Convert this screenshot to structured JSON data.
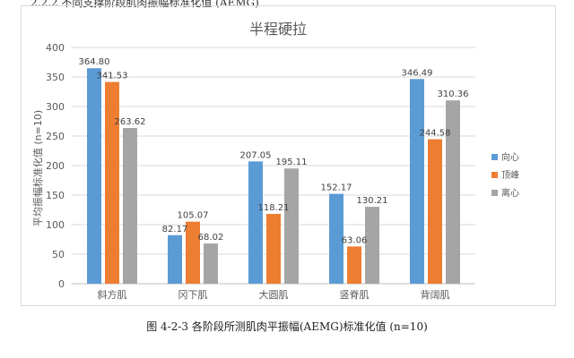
{
  "header_partial": "2.2.2 不同支撑阶段肌肉振幅标准化值 (AEMG)",
  "caption": "图 4-2-3 各阶段所测肌肉平振幅(AEMG)标准化值 (n=10)",
  "chart_data": {
    "type": "bar",
    "title": "半程硬拉",
    "xlabel": "",
    "ylabel": "平均振幅标准化值 (n=10)",
    "ylim": [
      0,
      400
    ],
    "yticks": [
      0,
      50,
      100,
      150,
      200,
      250,
      300,
      350,
      400
    ],
    "grid": true,
    "legend_position": "right",
    "categories": [
      "斜方肌",
      "冈下肌",
      "大圆肌",
      "竖脊肌",
      "背阔肌"
    ],
    "series": [
      {
        "name": "向心",
        "color": "#5b9bd5",
        "values": [
          364.8,
          82.17,
          207.05,
          152.17,
          346.49
        ],
        "labels": [
          "364.80",
          "82.17",
          "207.05",
          "152.17",
          "346.49"
        ]
      },
      {
        "name": "顶峰",
        "color": "#ed7d31",
        "values": [
          341.53,
          105.07,
          118.21,
          63.06,
          244.58
        ],
        "labels": [
          "341.53",
          "105.07",
          "118.21",
          "63.06",
          "244.58"
        ]
      },
      {
        "name": "离心",
        "color": "#a5a5a5",
        "values": [
          263.62,
          68.02,
          195.11,
          130.21,
          310.36
        ],
        "labels": [
          "263.62",
          "68.02",
          "195.11",
          "130.21",
          "310.36"
        ]
      }
    ]
  }
}
